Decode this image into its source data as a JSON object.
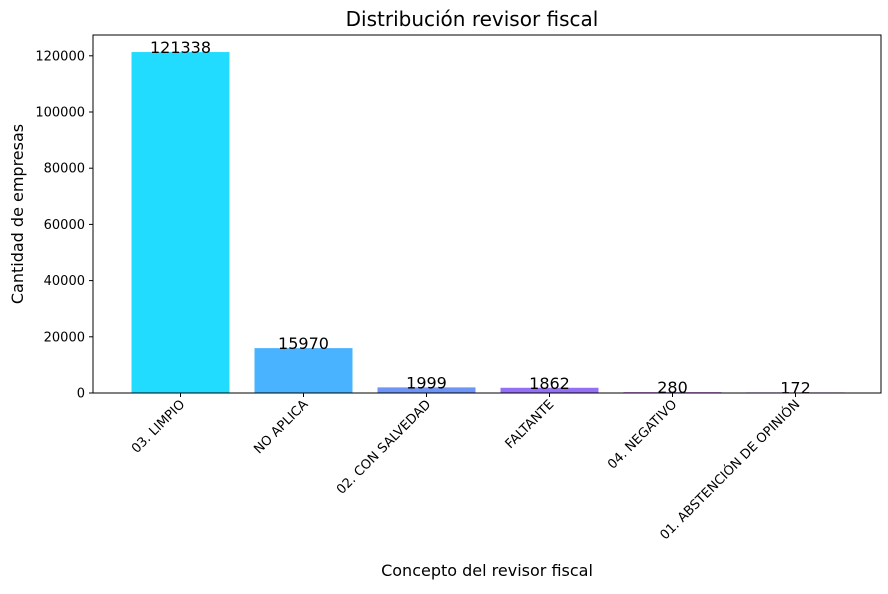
{
  "chart_data": {
    "type": "bar",
    "title": "Distribución revisor fiscal",
    "xlabel": "Concepto del revisor fiscal",
    "ylabel": "Cantidad de empresas",
    "categories": [
      "03. LIMPIO",
      "NO APLICA",
      "02. CON SALVEDAD",
      "FALTANTE",
      "04. NEGATIVO",
      "01. ABSTENCIÓN DE OPINIÓN"
    ],
    "values": [
      121338,
      15970,
      1999,
      1862,
      280,
      172
    ],
    "data_labels": [
      "121338",
      "15970",
      "1999",
      "1862",
      "280",
      "172"
    ],
    "colors": [
      "#22dcff",
      "#4ab3ff",
      "#6e94f5",
      "#9470f5",
      "#b54ef7",
      "#b54ef7"
    ],
    "yticks": [
      0,
      20000,
      40000,
      60000,
      80000,
      100000,
      120000
    ],
    "ytick_labels": [
      "0",
      "20000",
      "40000",
      "60000",
      "80000",
      "100000",
      "120000"
    ],
    "ylim": [
      0,
      127405
    ],
    "grid": false,
    "legend": "none"
  }
}
